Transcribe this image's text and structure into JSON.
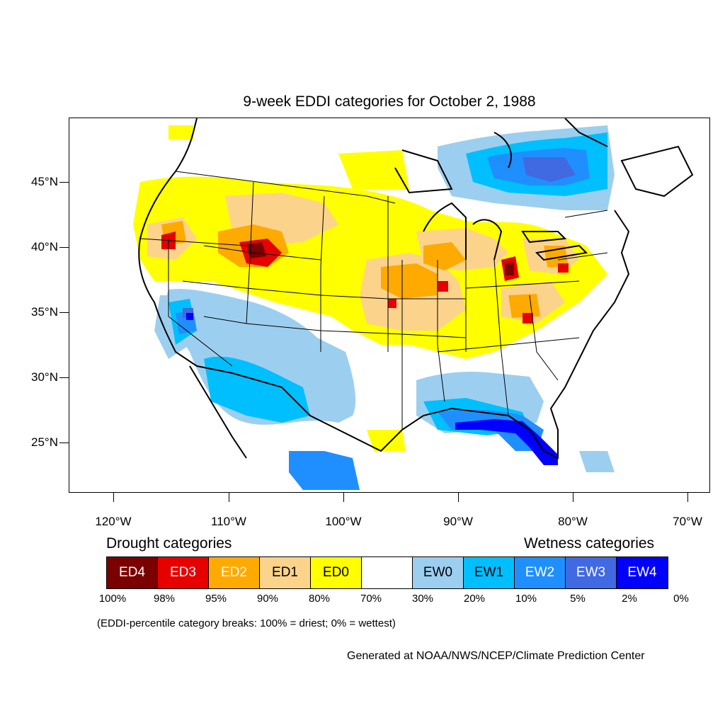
{
  "title": "9-week EDDI categories for October 2, 1988",
  "lat_labels": [
    "45°N",
    "40°N",
    "35°N",
    "30°N",
    "25°N"
  ],
  "lon_labels": [
    "120°W",
    "110°W",
    "100°W",
    "90°W",
    "80°W",
    "70°W"
  ],
  "legend": {
    "drought_heading": "Drought categories",
    "wetness_heading": "Wetness categories",
    "categories": [
      {
        "label": "ED4",
        "color": "#7b0000",
        "text_color": "#ffffff"
      },
      {
        "label": "ED3",
        "color": "#e60000",
        "text_color": "#ffffff"
      },
      {
        "label": "ED2",
        "color": "#ffaa00",
        "text_color": "#ffffff"
      },
      {
        "label": "ED1",
        "color": "#fcd38b",
        "text_color": "#000000"
      },
      {
        "label": "ED0",
        "color": "#ffff00",
        "text_color": "#000000"
      },
      {
        "label": "",
        "color": "#ffffff",
        "text_color": "#000000"
      },
      {
        "label": "EW0",
        "color": "#9ccfef",
        "text_color": "#000000"
      },
      {
        "label": "EW1",
        "color": "#00bfff",
        "text_color": "#000000"
      },
      {
        "label": "EW2",
        "color": "#1f8fff",
        "text_color": "#ffffff"
      },
      {
        "label": "EW3",
        "color": "#4169e1",
        "text_color": "#ffffff"
      },
      {
        "label": "EW4",
        "color": "#0000ff",
        "text_color": "#ffffff"
      }
    ],
    "breaks": [
      "100%",
      "98%",
      "95%",
      "90%",
      "80%",
      "70%",
      "30%",
      "20%",
      "10%",
      "5%",
      "2%",
      "0%"
    ]
  },
  "note": "(EDDI-percentile category breaks: 100% = driest; 0% = wettest)",
  "credit": "Generated at NOAA/NWS/NCEP/Climate Prediction Center"
}
